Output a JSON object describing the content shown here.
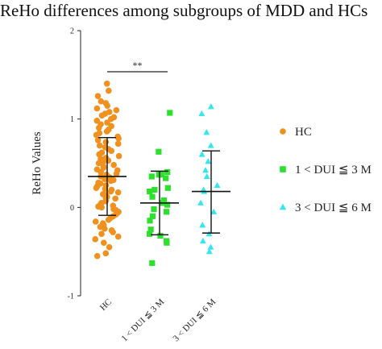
{
  "chart_data": {
    "type": "scatter",
    "title": "ReHo differences among subgroups of MDD and HCs",
    "ylabel": "ReHo Values",
    "xlabel": "",
    "ylim": [
      -1,
      2
    ],
    "yticks": [
      -1,
      0,
      1,
      2
    ],
    "categories": [
      "HC",
      "1 < DUI ≦ 3 M",
      "3 < DUI ≦ 6 M"
    ],
    "legend_placement": "right",
    "grid": false,
    "significance": [
      {
        "from": 0,
        "to": 1,
        "label": "**"
      }
    ],
    "series": [
      {
        "name": "HC",
        "marker": "circle",
        "color": "#f0901e",
        "mean": 0.35,
        "sd_upper": 0.79,
        "sd_lower": -0.09,
        "values": [
          1.4,
          1.32,
          1.26,
          1.2,
          1.18,
          1.15,
          1.12,
          1.1,
          1.08,
          1.06,
          1.04,
          1.02,
          1.0,
          0.98,
          0.96,
          0.94,
          0.92,
          0.9,
          0.88,
          0.86,
          0.84,
          0.82,
          0.8,
          0.78,
          0.76,
          0.74,
          0.72,
          0.7,
          0.68,
          0.66,
          0.64,
          0.62,
          0.6,
          0.58,
          0.56,
          0.55,
          0.53,
          0.51,
          0.5,
          0.48,
          0.46,
          0.45,
          0.43,
          0.42,
          0.4,
          0.38,
          0.37,
          0.35,
          0.34,
          0.32,
          0.31,
          0.3,
          0.28,
          0.27,
          0.25,
          0.24,
          0.22,
          0.21,
          0.2,
          0.18,
          0.17,
          0.15,
          0.14,
          0.12,
          0.11,
          0.1,
          0.08,
          0.07,
          0.05,
          0.04,
          0.02,
          0.01,
          0.0,
          -0.02,
          -0.03,
          -0.05,
          -0.06,
          -0.08,
          -0.1,
          -0.12,
          -0.14,
          -0.16,
          -0.18,
          -0.2,
          -0.22,
          -0.24,
          -0.26,
          -0.28,
          -0.3,
          -0.33,
          -0.36,
          -0.4,
          -0.45,
          -0.52,
          -0.55
        ]
      },
      {
        "name": "1 < DUI ≦ 3 M",
        "marker": "square",
        "color": "#2de02d",
        "mean": 0.05,
        "sd_upper": 0.41,
        "sd_lower": -0.31,
        "values": [
          1.07,
          0.63,
          0.4,
          0.37,
          0.37,
          0.35,
          0.33,
          0.22,
          0.2,
          0.18,
          0.12,
          0.08,
          0.06,
          0.05,
          0.03,
          -0.02,
          -0.05,
          -0.1,
          -0.15,
          -0.25,
          -0.3,
          -0.32,
          -0.38,
          -0.4,
          -0.63
        ]
      },
      {
        "name": "3 < DUI ≦ 6 M",
        "marker": "triangle",
        "color": "#35e6f0",
        "mean": 0.18,
        "sd_upper": 0.64,
        "sd_lower": -0.29,
        "values": [
          1.14,
          1.06,
          0.85,
          0.7,
          0.6,
          0.52,
          0.42,
          0.35,
          0.25,
          0.2,
          0.18,
          0.05,
          -0.05,
          -0.2,
          -0.3,
          -0.38,
          -0.45,
          -0.5
        ]
      }
    ]
  }
}
